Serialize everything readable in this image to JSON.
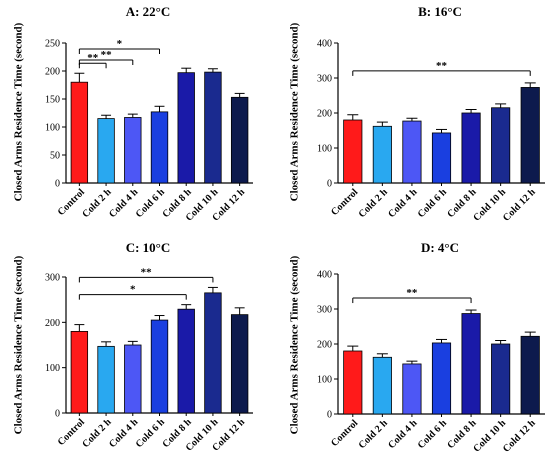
{
  "colors": [
    "#ff1a1a",
    "#29a8f0",
    "#4d57f5",
    "#1a3fe0",
    "#1a1aa8",
    "#1a2a8f",
    "#0d1a4d"
  ],
  "chart_data": [
    {
      "type": "bar",
      "title": "A: 22°C",
      "ylabel": "Closed Arms Residence Time (second)",
      "categories": [
        "Control",
        "Cold 2 h",
        "Cold 4 h",
        "Cold 6 h",
        "Cold 8 h",
        "Cold 10 h",
        "Cold 12 h"
      ],
      "values": [
        180,
        115,
        117,
        127,
        197,
        198,
        153
      ],
      "errors": [
        16,
        6,
        6,
        10,
        8,
        6,
        7
      ],
      "ylim": [
        0,
        250
      ],
      "yticks": [
        "0",
        "50",
        "100",
        "150",
        "200",
        "250"
      ],
      "yticks_values": [
        0,
        50,
        100,
        150,
        200,
        250
      ],
      "significance": [
        {
          "from": 0,
          "to": 1,
          "label": "**"
        },
        {
          "from": 0,
          "to": 2,
          "label": "**"
        },
        {
          "from": 0,
          "to": 3,
          "label": "*"
        }
      ]
    },
    {
      "type": "bar",
      "title": "B: 16°C",
      "ylabel": "Closed Arms Residence Time (second)",
      "categories": [
        "Control",
        "Cold 2 h",
        "Cold 4 h",
        "Cold 6 h",
        "Cold 8 h",
        "Cold 10 h",
        "Cold 12 h"
      ],
      "values": [
        180,
        162,
        177,
        143,
        200,
        215,
        273
      ],
      "errors": [
        15,
        12,
        8,
        10,
        10,
        11,
        13
      ],
      "ylim": [
        0,
        400
      ],
      "yticks": [
        "0",
        "100",
        "200",
        "300",
        "400"
      ],
      "yticks_values": [
        0,
        100,
        200,
        300,
        400
      ],
      "significance": [
        {
          "from": 0,
          "to": 6,
          "label": "**"
        }
      ]
    },
    {
      "type": "bar",
      "title": "C: 10°C",
      "ylabel": "Closed Arms Residence Time (second)",
      "categories": [
        "Control",
        "Cold 2 h",
        "Cold 4 h",
        "Cold 6 h",
        "Cold 8 h",
        "Cold 10 h",
        "Cold 12 h"
      ],
      "values": [
        180,
        147,
        150,
        205,
        229,
        265,
        217
      ],
      "errors": [
        15,
        10,
        8,
        10,
        10,
        12,
        15
      ],
      "ylim": [
        0,
        300
      ],
      "yticks": [
        "0",
        "100",
        "200",
        "300"
      ],
      "yticks_values": [
        0,
        100,
        200,
        300
      ],
      "significance": [
        {
          "from": 0,
          "to": 4,
          "label": "*"
        },
        {
          "from": 0,
          "to": 5,
          "label": "**"
        }
      ]
    },
    {
      "type": "bar",
      "title": "D: 4°C",
      "ylabel": "Closed Arms Residence Time (second)",
      "categories": [
        "Control",
        "Cold 2 h",
        "Cold 4 h",
        "Cold 6 h",
        "Cold 8 h",
        "Cold 10 h",
        "Cold 12 h"
      ],
      "values": [
        180,
        162,
        143,
        203,
        287,
        200,
        222
      ],
      "errors": [
        14,
        10,
        8,
        10,
        10,
        10,
        12
      ],
      "ylim": [
        0,
        400
      ],
      "yticks": [
        "0",
        "100",
        "200",
        "300",
        "400"
      ],
      "yticks_values": [
        0,
        100,
        200,
        300,
        400
      ],
      "significance": [
        {
          "from": 0,
          "to": 4,
          "label": "**"
        }
      ]
    }
  ]
}
